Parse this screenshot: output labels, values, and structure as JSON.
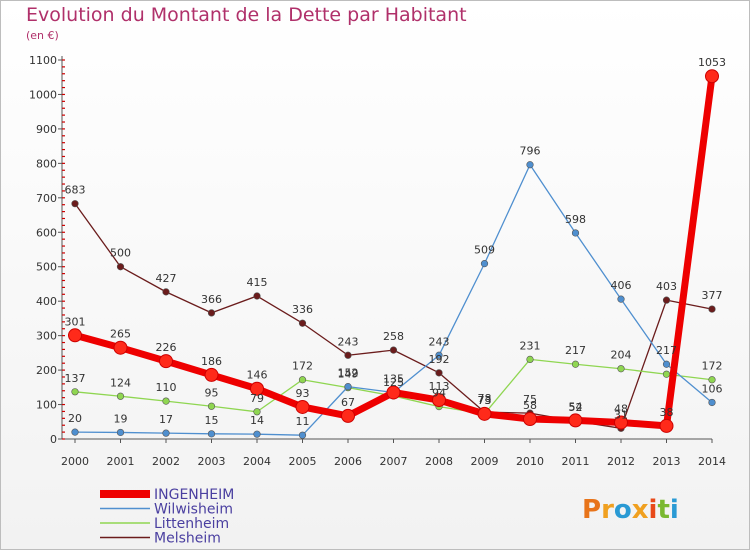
{
  "chart_data": {
    "type": "line",
    "title": "Evolution du Montant de la Dette par Habitant",
    "subtitle": "(en €)",
    "xlabel": "",
    "ylabel": "",
    "ylim": [
      0,
      1100
    ],
    "yticks": [
      0,
      100,
      200,
      300,
      400,
      500,
      600,
      700,
      800,
      900,
      1000,
      1100
    ],
    "categories": [
      "2000",
      "2001",
      "2002",
      "2003",
      "2004",
      "2005",
      "2006",
      "2007",
      "2008",
      "2009",
      "2010",
      "2011",
      "2012",
      "2013",
      "2014"
    ],
    "series": [
      {
        "name": "Melsheim",
        "color": "#6b1c1c",
        "values": [
          683,
          500,
          427,
          366,
          415,
          336,
          243,
          258,
          192,
          78,
          75,
          52,
          31,
          403,
          377
        ],
        "labels": [
          "683",
          "500",
          "427",
          "366",
          "415",
          "336",
          "243",
          "258",
          "192",
          "78",
          "75",
          "52",
          "31",
          "403",
          "377"
        ]
      },
      {
        "name": "Littenheim",
        "color": "#8fd651",
        "values": [
          137,
          124,
          110,
          95,
          79,
          172,
          149,
          125,
          94,
          73,
          231,
          217,
          204,
          188,
          172
        ],
        "labels": [
          "137",
          "124",
          "110",
          "95",
          "79",
          "172",
          "149",
          "125",
          "94",
          "73",
          "231",
          "217",
          "204",
          "",
          "172"
        ]
      },
      {
        "name": "Wilwisheim",
        "color": "#4f8fcf",
        "values": [
          20,
          19,
          17,
          15,
          14,
          11,
          152,
          135,
          243,
          509,
          796,
          598,
          406,
          217,
          106
        ],
        "labels": [
          "20",
          "19",
          "17",
          "15",
          "14",
          "11",
          "152",
          "135",
          "243",
          "509",
          "796",
          "598",
          "406",
          "217",
          "106"
        ]
      },
      {
        "name": "INGENHEIM",
        "color": "#ee0000",
        "values": [
          301,
          265,
          226,
          186,
          146,
          93,
          67,
          135,
          113,
          73,
          58,
          54,
          48,
          38,
          1053
        ],
        "labels": [
          "301",
          "265",
          "226",
          "186",
          "146",
          "93",
          "67",
          "",
          "113",
          "73",
          "58",
          "54",
          "48",
          "38",
          "1053"
        ]
      }
    ],
    "legend_order": [
      "INGENHEIM",
      "Wilwisheim",
      "Littenheim",
      "Melsheim"
    ],
    "legend_position": "bottom-left",
    "grid": false
  },
  "logo": {
    "text": "Proxiti",
    "letters": [
      "P",
      "r",
      "o",
      "x",
      "i",
      "t",
      "i"
    ]
  }
}
